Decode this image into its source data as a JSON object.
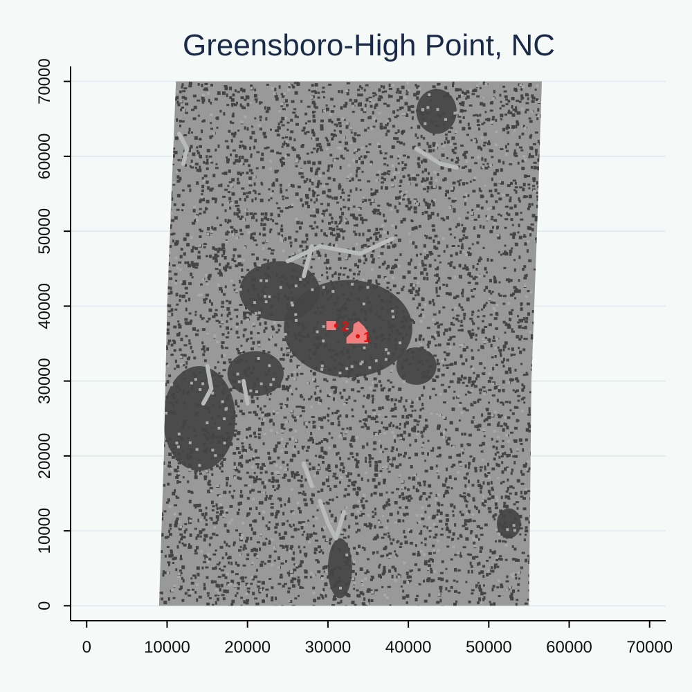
{
  "chart_data": {
    "type": "map",
    "title": "Greensboro-High Point, NC",
    "xlabel": "",
    "ylabel": "",
    "xlim": [
      -2000,
      72000
    ],
    "ylim": [
      -2000,
      72000
    ],
    "xticks": [
      0,
      10000,
      20000,
      30000,
      40000,
      50000,
      60000,
      70000
    ],
    "yticks": [
      0,
      10000,
      20000,
      30000,
      40000,
      50000,
      60000,
      70000
    ],
    "grid": true,
    "grid_axis": "y",
    "colors": {
      "background": "#f5f9f7",
      "gridline": "#e4ecf2",
      "rural": "#999999",
      "developed": "#444444",
      "water": "#b8bcb9",
      "highlight": "#f08080",
      "highlight_label": "#e01010",
      "title": "#1a2b4a"
    },
    "footprint": [
      [
        9000,
        0
      ],
      [
        55000,
        0
      ],
      [
        55300,
        30000
      ],
      [
        56000,
        50000
      ],
      [
        56600,
        70000
      ],
      [
        11100,
        70000
      ],
      [
        10000,
        40000
      ],
      [
        9600,
        20000
      ]
    ],
    "dense_areas": [
      {
        "cx": 32500,
        "cy": 37000,
        "rx": 8000,
        "ry": 6500
      },
      {
        "cx": 24000,
        "cy": 42000,
        "rx": 5000,
        "ry": 4000
      },
      {
        "cx": 14000,
        "cy": 25000,
        "rx": 4500,
        "ry": 7000
      },
      {
        "cx": 21000,
        "cy": 31000,
        "rx": 3500,
        "ry": 3000
      },
      {
        "cx": 43500,
        "cy": 66000,
        "rx": 2500,
        "ry": 3000
      },
      {
        "cx": 41000,
        "cy": 32000,
        "rx": 2500,
        "ry": 2500
      },
      {
        "cx": 52500,
        "cy": 11000,
        "rx": 1500,
        "ry": 2000
      },
      {
        "cx": 31500,
        "cy": 5000,
        "rx": 1500,
        "ry": 4000
      }
    ],
    "water_lines": [
      [
        [
          25000,
          46000
        ],
        [
          29000,
          48000
        ],
        [
          34000,
          47000
        ],
        [
          38000,
          49000
        ]
      ],
      [
        [
          27000,
          44000
        ],
        [
          28000,
          48000
        ]
      ],
      [
        [
          11500,
          63000
        ],
        [
          12500,
          61000
        ],
        [
          12000,
          59000
        ]
      ],
      [
        [
          41000,
          61000
        ],
        [
          44000,
          59000
        ],
        [
          46000,
          58500
        ]
      ],
      [
        [
          15000,
          32000
        ],
        [
          15500,
          29000
        ],
        [
          14500,
          27000
        ]
      ],
      [
        [
          19500,
          30000
        ],
        [
          20000,
          27000
        ]
      ],
      [
        [
          29000,
          14000
        ],
        [
          30000,
          11000
        ],
        [
          31000,
          9000
        ],
        [
          32000,
          12500
        ]
      ],
      [
        [
          27000,
          19000
        ],
        [
          28000,
          16000
        ]
      ]
    ],
    "highlighted_areas": [
      {
        "label": "1",
        "polygon": [
          [
            32300,
            35000
          ],
          [
            35000,
            35000
          ],
          [
            35000,
            36500
          ],
          [
            34500,
            37300
          ],
          [
            33800,
            38000
          ],
          [
            33200,
            37600
          ],
          [
            33100,
            36600
          ],
          [
            32300,
            35800
          ]
        ],
        "label_point": [
          34400,
          35800
        ]
      },
      {
        "label": "2",
        "polygon": [
          [
            29800,
            36800
          ],
          [
            31000,
            36800
          ],
          [
            31000,
            38000
          ],
          [
            29800,
            38000
          ]
        ],
        "label_point": [
          31700,
          37200
        ]
      }
    ]
  }
}
